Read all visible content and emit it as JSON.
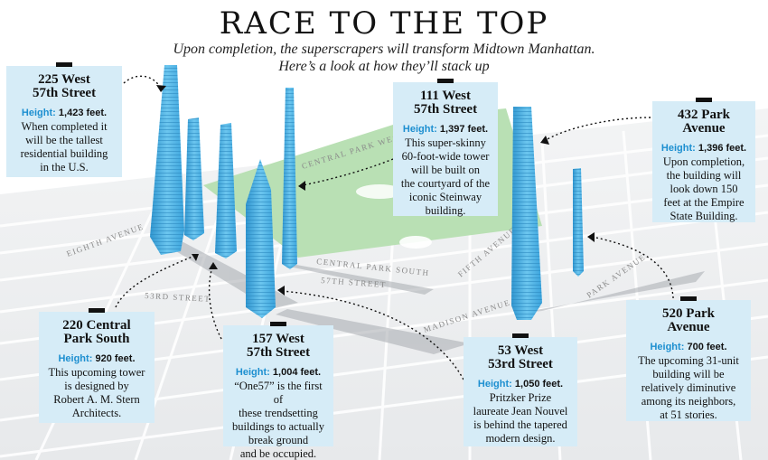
{
  "header": {
    "title": "RACE TO THE TOP",
    "subtitle_line1": "Upon completion, the superscrapers will transform Midtown Manhattan.",
    "subtitle_line2": "Here’s a look at how they’ll stack up"
  },
  "streets": {
    "central_park_west": "CENTRAL PARK WEST",
    "eighth_avenue": "EIGHTH AVENUE",
    "central_park_south": "CENTRAL PARK SOUTH",
    "fifty_seventh_street": "57TH STREET",
    "fifth_avenue": "FIFTH AVENUE",
    "fifty_third_street": "53RD STREET",
    "madison_avenue": "MADISON AVENUE",
    "park_avenue": "PARK AVENUE"
  },
  "buildings": {
    "west225": {
      "name_line1": "225 West",
      "name_line2": "57th Street",
      "height_label": "Height:",
      "height_value": "1,423 feet.",
      "desc_line1": "When completed it",
      "desc_line2": "will be the tallest",
      "desc_line3": "residential building",
      "desc_line4": "in the U.S."
    },
    "west111": {
      "name_line1": "111 West",
      "name_line2": "57th Street",
      "height_label": "Height:",
      "height_value": "1,397 feet.",
      "desc_line1": "This super-skinny",
      "desc_line2": "60-foot-wide tower",
      "desc_line3": "will be built on",
      "desc_line4": "the courtyard of the",
      "desc_line5": "iconic Steinway",
      "desc_line6": "building."
    },
    "park432": {
      "name_line1": "432 Park",
      "name_line2": "Avenue",
      "height_label": "Height:",
      "height_value": "1,396 feet.",
      "desc_line1": "Upon completion,",
      "desc_line2": "the building will",
      "desc_line3": "look down 150",
      "desc_line4": "feet at the Empire",
      "desc_line5": "State Building."
    },
    "cps220": {
      "name_line1": "220 Central",
      "name_line2": "Park South",
      "height_label": "Height:",
      "height_value": "920 feet.",
      "desc_line1": "This upcoming tower",
      "desc_line2": "is designed by",
      "desc_line3": "Robert A. M. Stern",
      "desc_line4": "Architects."
    },
    "west157": {
      "name_line1": "157 West",
      "name_line2": "57th Street",
      "height_label": "Height:",
      "height_value": "1,004 feet.",
      "desc_line1": "“One57” is the first of",
      "desc_line2": "these trendsetting",
      "desc_line3": "buildings to actually",
      "desc_line4": "break ground",
      "desc_line5": "and be occupied."
    },
    "west53": {
      "name_line1": "53 West",
      "name_line2": "53rd Street",
      "height_label": "Height:",
      "height_value": "1,050 feet.",
      "desc_line1": "Pritzker Prize",
      "desc_line2": "laureate Jean Nouvel",
      "desc_line3": "is behind the tapered",
      "desc_line4": "modern design."
    },
    "park520": {
      "name_line1": "520 Park",
      "name_line2": "Avenue",
      "height_label": "Height:",
      "height_value": "700 feet.",
      "desc_line1": "The upcoming 31-unit",
      "desc_line2": "building will be",
      "desc_line3": "relatively diminutive",
      "desc_line4": "among its neighbors,",
      "desc_line5": "at 51 stories."
    }
  },
  "colors": {
    "box_bg": "#d6ecf7",
    "height_label": "#1d8fd0",
    "tower": "#4fb3e6",
    "park": "#b9e0b4"
  }
}
